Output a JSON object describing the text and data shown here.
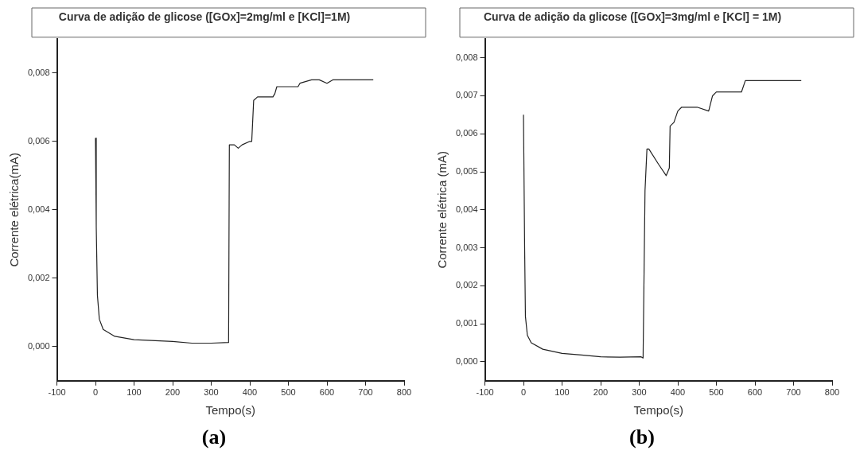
{
  "chart_data": [
    {
      "type": "line",
      "title": "Curva de adição de glicose ([GOx]=2mg/ml e [KCl]=1M)",
      "xlabel": "Tempo(s)",
      "ylabel": "Corrente elétrica(mA)",
      "annotations": [
        "(a)"
      ],
      "series": [
        {
          "color": "#222222",
          "x": [
            0,
            2,
            5,
            10,
            20,
            50,
            100,
            200,
            250,
            300,
            345,
            347,
            360,
            370,
            380,
            400,
            405,
            410,
            420,
            460,
            465,
            470,
            500,
            525,
            530,
            560,
            580,
            600,
            615,
            650,
            680,
            720
          ],
          "values": [
            0.0061,
            0.0035,
            0.0015,
            0.0008,
            0.0005,
            0.0003,
            0.0002,
            0.00015,
            0.0001,
            0.0001,
            0.00012,
            0.0059,
            0.0059,
            0.0058,
            0.0059,
            0.006,
            0.006,
            0.0072,
            0.0073,
            0.0073,
            0.0074,
            0.0076,
            0.0076,
            0.0076,
            0.0077,
            0.0078,
            0.0078,
            0.0077,
            0.0078,
            0.0078,
            0.0078,
            0.0078
          ]
        }
      ],
      "xlim": [
        -100,
        800
      ],
      "xticks": [
        -100,
        0,
        100,
        200,
        300,
        400,
        500,
        600,
        700,
        800
      ],
      "ylim": [
        -0.001,
        0.009
      ],
      "yticks": [
        {
          "value": 0,
          "label": "0,000"
        },
        {
          "value": 0.002,
          "label": "0,002"
        },
        {
          "value": 0.004,
          "label": "0,004"
        },
        {
          "value": 0.006,
          "label": "0,006"
        },
        {
          "value": 0.008,
          "label": "0,008"
        }
      ],
      "grid": false,
      "legend": false,
      "marker": "none",
      "line_style": "solid"
    },
    {
      "type": "line",
      "title": "Curva de adição da glicose ([GOx]=3mg/ml e [KCl] = 1M)",
      "xlabel": "Tempo(s)",
      "ylabel": "Corrente elétrica (mA)",
      "annotations": [
        "(b)"
      ],
      "series": [
        {
          "color": "#222222",
          "x": [
            0,
            3,
            5,
            10,
            20,
            50,
            100,
            150,
            200,
            250,
            305,
            310,
            315,
            320,
            325,
            350,
            370,
            378,
            380,
            390,
            400,
            410,
            420,
            450,
            480,
            490,
            500,
            550,
            565,
            575,
            600,
            650,
            700,
            720
          ],
          "values": [
            0.0065,
            0.003,
            0.0012,
            0.0007,
            0.0005,
            0.00033,
            0.00022,
            0.00018,
            0.00013,
            0.00012,
            0.00013,
            0.0001,
            0.0045,
            0.0056,
            0.0056,
            0.0052,
            0.0049,
            0.0051,
            0.0062,
            0.0063,
            0.0066,
            0.0067,
            0.0067,
            0.0067,
            0.0066,
            0.007,
            0.0071,
            0.0071,
            0.0071,
            0.0074,
            0.0074,
            0.0074,
            0.0074,
            0.0074
          ]
        }
      ],
      "xlim": [
        -100,
        800
      ],
      "xticks": [
        -100,
        0,
        100,
        200,
        300,
        400,
        500,
        600,
        700,
        800
      ],
      "ylim": [
        -0.0005,
        0.0085
      ],
      "yticks": [
        {
          "value": 0,
          "label": "0,000"
        },
        {
          "value": 0.001,
          "label": "0,001"
        },
        {
          "value": 0.002,
          "label": "0,002"
        },
        {
          "value": 0.003,
          "label": "0,003"
        },
        {
          "value": 0.004,
          "label": "0,004"
        },
        {
          "value": 0.005,
          "label": "0,005"
        },
        {
          "value": 0.006,
          "label": "0,006"
        },
        {
          "value": 0.007,
          "label": "0,007"
        },
        {
          "value": 0.008,
          "label": "0,008"
        }
      ],
      "grid": false,
      "legend": false,
      "marker": "none",
      "line_style": "solid"
    }
  ]
}
